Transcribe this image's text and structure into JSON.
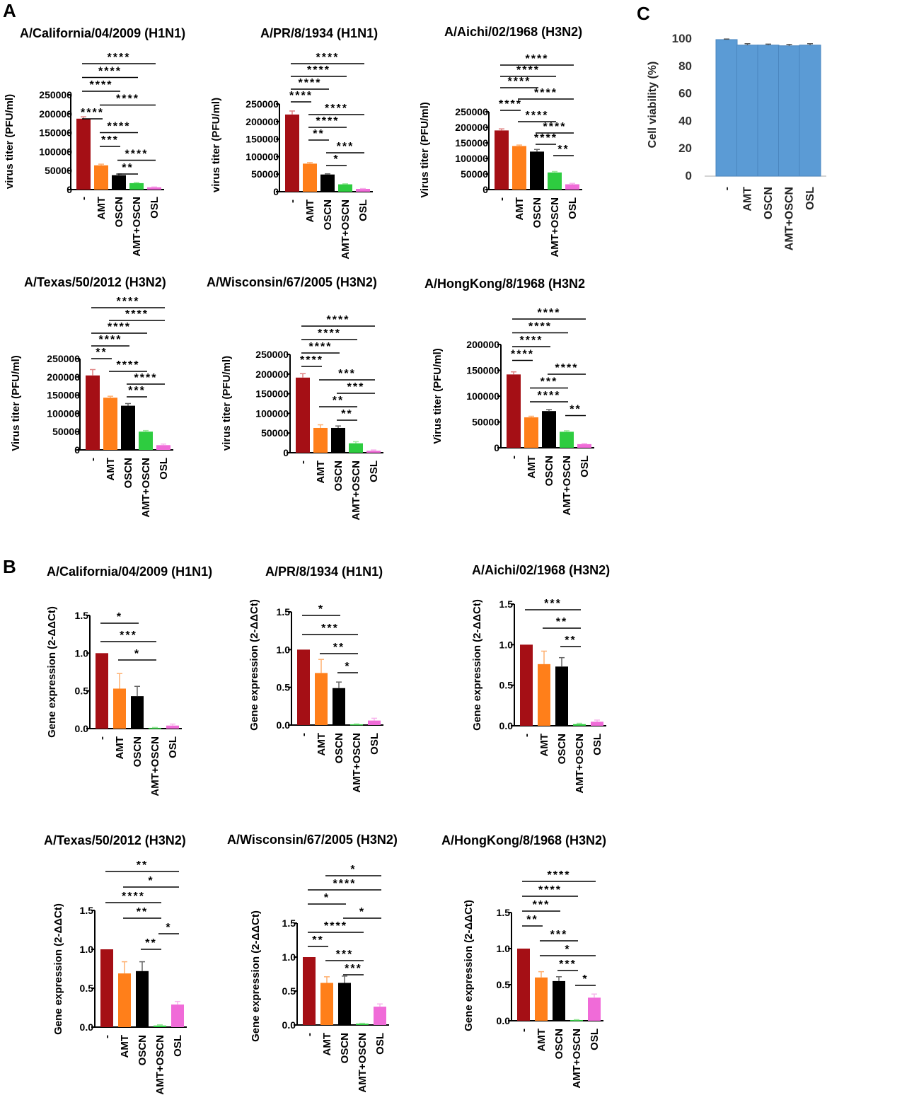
{
  "panel_labels": {
    "a": "A",
    "b": "B",
    "c": "C"
  },
  "colors": {
    "untreated": "#a50f15",
    "amt": "#ff7f1a",
    "oscn": "#000000",
    "amt_oscn": "#2ecc40",
    "osl": "#f06bd8",
    "viability": "#5b9bd5"
  },
  "chart_data": [
    {
      "id": "A1",
      "panel": "A",
      "type": "bar",
      "title": "A/California/04/2009 (H1N1)",
      "ylabel": "virus titer (PFU/ml)",
      "categories": [
        "-",
        "AMT",
        "OSCN",
        "AMT+OSCN",
        "OSL"
      ],
      "values": [
        187000,
        64000,
        38000,
        17000,
        6000
      ],
      "errors": [
        5000,
        3000,
        3000,
        2000,
        1000
      ],
      "ylim": [
        0,
        250000
      ],
      "yticks": [
        "0",
        "50000",
        "100000",
        "150000",
        "200000",
        "250000"
      ],
      "brackets": [
        {
          "from": 0,
          "to": 4,
          "label": "****"
        },
        {
          "from": 0,
          "to": 3,
          "label": "****"
        },
        {
          "from": 0,
          "to": 2,
          "label": "****"
        },
        {
          "from": 1,
          "to": 4,
          "label": "****"
        },
        {
          "from": 0,
          "to": 1,
          "label": "****"
        },
        {
          "from": 1,
          "to": 3,
          "label": "****"
        },
        {
          "from": 1,
          "to": 2,
          "label": "***"
        },
        {
          "from": 2,
          "to": 4,
          "label": "****"
        },
        {
          "from": 2,
          "to": 3,
          "label": "**"
        }
      ]
    },
    {
      "id": "A2",
      "panel": "A",
      "type": "bar",
      "title": "A/PR/8/1934 (H1N1)",
      "ylabel": "virus titer (PFU/ml)",
      "categories": [
        "-",
        "AMT",
        "OSCN",
        "AMT+OSCN",
        "OSL"
      ],
      "values": [
        220000,
        80000,
        49000,
        21000,
        8000
      ],
      "errors": [
        10000,
        3000,
        2000,
        1500,
        1000
      ],
      "ylim": [
        0,
        250000
      ],
      "yticks": [
        "0",
        "50000",
        "100000",
        "150000",
        "200000",
        "250000"
      ],
      "brackets": [
        {
          "from": 0,
          "to": 4,
          "label": "****"
        },
        {
          "from": 0,
          "to": 3,
          "label": "****"
        },
        {
          "from": 0,
          "to": 2,
          "label": "****"
        },
        {
          "from": 0,
          "to": 1,
          "label": "****"
        },
        {
          "from": 1,
          "to": 4,
          "label": "****"
        },
        {
          "from": 1,
          "to": 3,
          "label": "****"
        },
        {
          "from": 1,
          "to": 2,
          "label": "**"
        },
        {
          "from": 2,
          "to": 4,
          "label": "***"
        },
        {
          "from": 2,
          "to": 3,
          "label": "*"
        }
      ]
    },
    {
      "id": "A3",
      "panel": "A",
      "type": "bar",
      "title": "A/Aichi/02/1968 (H3N2)",
      "ylabel": "Virus titer (PFU/ml)",
      "categories": [
        "-",
        "AMT",
        "OSCN",
        "AMT+OSCN",
        "OSL"
      ],
      "values": [
        190000,
        140000,
        122000,
        55000,
        17000
      ],
      "errors": [
        5000,
        3000,
        7000,
        3000,
        3000
      ],
      "ylim": [
        0,
        250000
      ],
      "yticks": [
        "0",
        "50000",
        "100000",
        "150000",
        "200000",
        "250000"
      ],
      "brackets": [
        {
          "from": 0,
          "to": 4,
          "label": "****"
        },
        {
          "from": 0,
          "to": 3,
          "label": "****"
        },
        {
          "from": 0,
          "to": 2,
          "label": "****"
        },
        {
          "from": 1,
          "to": 4,
          "label": "****"
        },
        {
          "from": 0,
          "to": 1,
          "label": "****"
        },
        {
          "from": 1,
          "to": 3,
          "label": "****"
        },
        {
          "from": 2,
          "to": 4,
          "label": "****"
        },
        {
          "from": 2,
          "to": 3,
          "label": "****"
        },
        {
          "from": 3,
          "to": 4,
          "label": "**"
        }
      ]
    },
    {
      "id": "A4",
      "panel": "A",
      "type": "bar",
      "title": "A/Texas/50/2012 (H3N2)",
      "ylabel": "Virus titer (PFU/ml)",
      "categories": [
        "-",
        "AMT",
        "OSCN",
        "AMT+OSCN",
        "OSL"
      ],
      "values": [
        204000,
        143000,
        121000,
        50000,
        13000
      ],
      "errors": [
        16000,
        4000,
        6000,
        3000,
        3000
      ],
      "ylim": [
        0,
        250000
      ],
      "yticks": [
        "0",
        "50000",
        "100000",
        "150000",
        "200000",
        "250000"
      ],
      "brackets": [
        {
          "from": 0,
          "to": 4,
          "label": "****"
        },
        {
          "from": 1,
          "to": 4,
          "label": "****"
        },
        {
          "from": 0,
          "to": 3,
          "label": "****"
        },
        {
          "from": 0,
          "to": 2,
          "label": "****"
        },
        {
          "from": 0,
          "to": 1,
          "label": "**"
        },
        {
          "from": 1,
          "to": 3,
          "label": "****"
        },
        {
          "from": 2,
          "to": 4,
          "label": "****"
        },
        {
          "from": 2,
          "to": 3,
          "label": "***"
        }
      ]
    },
    {
      "id": "A5",
      "panel": "A",
      "type": "bar",
      "title": "A/Wisconsin/67/2005 (H3N2)",
      "ylabel": "virus titer (PFU/ml)",
      "categories": [
        "-",
        "AMT",
        "OSCN",
        "AMT+OSCN",
        "OSL"
      ],
      "values": [
        191000,
        63000,
        63000,
        24000,
        5000
      ],
      "errors": [
        10000,
        8000,
        5000,
        4000,
        2000
      ],
      "ylim": [
        0,
        250000
      ],
      "yticks": [
        "0",
        "50000",
        "100000",
        "150000",
        "200000",
        "250000"
      ],
      "brackets": [
        {
          "from": 0,
          "to": 4,
          "label": "****"
        },
        {
          "from": 0,
          "to": 3,
          "label": "****"
        },
        {
          "from": 0,
          "to": 2,
          "label": "****"
        },
        {
          "from": 0,
          "to": 1,
          "label": "****"
        },
        {
          "from": 1,
          "to": 4,
          "label": "***"
        },
        {
          "from": 2,
          "to": 4,
          "label": "***"
        },
        {
          "from": 1,
          "to": 3,
          "label": "**"
        },
        {
          "from": 2,
          "to": 3,
          "label": "**"
        }
      ]
    },
    {
      "id": "A6",
      "panel": "A",
      "type": "bar",
      "title": "A/HongKong/8/1968 (H3N2",
      "ylabel": "Virus titer (PFU/ml)",
      "categories": [
        "-",
        "AMT",
        "OSCN",
        "AMT+OSCN",
        "OSL"
      ],
      "values": [
        142000,
        59000,
        71000,
        31000,
        7000
      ],
      "errors": [
        5000,
        2000,
        3000,
        2000,
        1500
      ],
      "ylim": [
        0,
        200000
      ],
      "yticks": [
        "0",
        "50000",
        "100000",
        "150000",
        "200000"
      ],
      "brackets": [
        {
          "from": 0,
          "to": 4,
          "label": "****"
        },
        {
          "from": 0,
          "to": 3,
          "label": "****"
        },
        {
          "from": 0,
          "to": 2,
          "label": "****"
        },
        {
          "from": 0,
          "to": 1,
          "label": "****"
        },
        {
          "from": 2,
          "to": 4,
          "label": "****"
        },
        {
          "from": 1,
          "to": 3,
          "label": "***"
        },
        {
          "from": 1,
          "to": 3,
          "label": "****"
        },
        {
          "from": 3,
          "to": 4,
          "label": "**"
        }
      ]
    },
    {
      "id": "B1",
      "panel": "B",
      "type": "bar",
      "title": "A/California/04/2009 (H1N1)",
      "ylabel": "Gene expression (2-ΔΔCt)",
      "categories": [
        "-",
        "AMT",
        "OSCN",
        "AMT+OSCN",
        "OSL"
      ],
      "values": [
        1.0,
        0.53,
        0.43,
        0.01,
        0.04
      ],
      "errors": [
        0,
        0.2,
        0.13,
        0.005,
        0.02
      ],
      "ylim": [
        0,
        1.5
      ],
      "yticks": [
        "0.0",
        "0.5",
        "1.0",
        "1.5"
      ],
      "brackets": [
        {
          "from": 0,
          "to": 2,
          "label": "*"
        },
        {
          "from": 0,
          "to": 3,
          "label": "***"
        },
        {
          "from": 1,
          "to": 3,
          "label": "*"
        }
      ]
    },
    {
      "id": "B2",
      "panel": "B",
      "type": "bar",
      "title": "A/PR/8/1934 (H1N1)",
      "ylabel": "Gene expression (2-ΔΔCt)",
      "categories": [
        "-",
        "AMT",
        "OSCN",
        "AMT+OSCN",
        "OSL"
      ],
      "values": [
        1.0,
        0.69,
        0.49,
        0.01,
        0.06
      ],
      "errors": [
        0,
        0.18,
        0.08,
        0.005,
        0.03
      ],
      "ylim": [
        0,
        1.5
      ],
      "yticks": [
        "0.0",
        "0.5",
        "1.0",
        "1.5"
      ],
      "brackets": [
        {
          "from": 0,
          "to": 2,
          "label": "*"
        },
        {
          "from": 0,
          "to": 3,
          "label": "***"
        },
        {
          "from": 1,
          "to": 3,
          "label": "**"
        },
        {
          "from": 2,
          "to": 3,
          "label": "*"
        }
      ]
    },
    {
      "id": "B3",
      "panel": "B",
      "type": "bar",
      "title": "A/Aichi/02/1968 (H3N2)",
      "ylabel": "Gene expression (2-ΔΔCt)",
      "categories": [
        "-",
        "AMT",
        "OSCN",
        "AMT+OSCN",
        "OSL"
      ],
      "values": [
        1.0,
        0.76,
        0.73,
        0.02,
        0.05
      ],
      "errors": [
        0,
        0.16,
        0.11,
        0.01,
        0.02
      ],
      "ylim": [
        0,
        1.5
      ],
      "yticks": [
        "0.0",
        "0.5",
        "1.0",
        "1.5"
      ],
      "brackets": [
        {
          "from": 0,
          "to": 3,
          "label": "***"
        },
        {
          "from": 1,
          "to": 3,
          "label": "**"
        },
        {
          "from": 2,
          "to": 3,
          "label": "**"
        }
      ]
    },
    {
      "id": "B4",
      "panel": "B",
      "type": "bar",
      "title": "A/Texas/50/2012 (H3N2)",
      "ylabel": "Gene expression (2-ΔΔCt)",
      "categories": [
        "-",
        "AMT",
        "OSCN",
        "AMT+OSCN",
        "OSL"
      ],
      "values": [
        1.0,
        0.69,
        0.72,
        0.02,
        0.29
      ],
      "errors": [
        0,
        0.15,
        0.12,
        0.01,
        0.04
      ],
      "ylim": [
        0,
        1.5
      ],
      "yticks": [
        "0.0",
        "0.5",
        "1.0",
        "1.5"
      ],
      "brackets": [
        {
          "from": 0,
          "to": 4,
          "label": "**"
        },
        {
          "from": 1,
          "to": 4,
          "label": "*"
        },
        {
          "from": 0,
          "to": 3,
          "label": "****"
        },
        {
          "from": 1,
          "to": 3,
          "label": "**"
        },
        {
          "from": 3,
          "to": 4,
          "label": "*"
        },
        {
          "from": 2,
          "to": 3,
          "label": "**"
        }
      ]
    },
    {
      "id": "B5",
      "panel": "B",
      "type": "bar",
      "title": "A/Wisconsin/67/2005 (H3N2)",
      "ylabel": "Gene expression (2-ΔΔCt)",
      "categories": [
        "-",
        "AMT",
        "OSCN",
        "AMT+OSCN",
        "OSL"
      ],
      "values": [
        1.0,
        0.62,
        0.62,
        0.02,
        0.27
      ],
      "errors": [
        0,
        0.09,
        0.1,
        0.005,
        0.04
      ],
      "ylim": [
        0,
        1.5
      ],
      "yticks": [
        "0.0",
        "0.5",
        "1.0",
        "1.5"
      ],
      "brackets": [
        {
          "from": 1,
          "to": 4,
          "label": "*"
        },
        {
          "from": 0,
          "to": 4,
          "label": "****"
        },
        {
          "from": 0,
          "to": 2,
          "label": "*"
        },
        {
          "from": 2,
          "to": 4,
          "label": "*"
        },
        {
          "from": 0,
          "to": 3,
          "label": "****"
        },
        {
          "from": 0,
          "to": 1,
          "label": "**"
        },
        {
          "from": 1,
          "to": 3,
          "label": "***"
        },
        {
          "from": 2,
          "to": 3,
          "label": "***"
        }
      ]
    },
    {
      "id": "B6",
      "panel": "B",
      "type": "bar",
      "title": "A/HongKong/8/1968 (H3N2)",
      "ylabel": "Gene expression (2-ΔΔCt)",
      "categories": [
        "-",
        "AMT",
        "OSCN",
        "AMT+OSCN",
        "OSL"
      ],
      "values": [
        1.0,
        0.6,
        0.55,
        0.01,
        0.32
      ],
      "errors": [
        0,
        0.08,
        0.06,
        0.005,
        0.05
      ],
      "ylim": [
        0,
        1.5
      ],
      "yticks": [
        "0.0",
        "0.5",
        "1.0",
        "1.5"
      ],
      "brackets": [
        {
          "from": 0,
          "to": 4,
          "label": "****"
        },
        {
          "from": 0,
          "to": 3,
          "label": "****"
        },
        {
          "from": 0,
          "to": 2,
          "label": "***"
        },
        {
          "from": 0,
          "to": 1,
          "label": "**"
        },
        {
          "from": 1,
          "to": 3,
          "label": "***"
        },
        {
          "from": 1,
          "to": 4,
          "label": "*"
        },
        {
          "from": 2,
          "to": 3,
          "label": "***"
        },
        {
          "from": 3,
          "to": 4,
          "label": "*"
        }
      ]
    },
    {
      "id": "C",
      "panel": "C",
      "type": "bar",
      "title": "",
      "ylabel": "Cell viability (%)",
      "categories": [
        "-",
        "AMT",
        "OSCN",
        "AMT+OSCN",
        "OSL"
      ],
      "values": [
        99.5,
        95.5,
        95.5,
        95.0,
        95.5
      ],
      "errors": [
        0.4,
        1.0,
        0.7,
        1.0,
        1.0
      ],
      "ylim": [
        0,
        100
      ],
      "yticks": [
        "0",
        "20",
        "40",
        "60",
        "80",
        "100"
      ],
      "grid": false
    }
  ]
}
